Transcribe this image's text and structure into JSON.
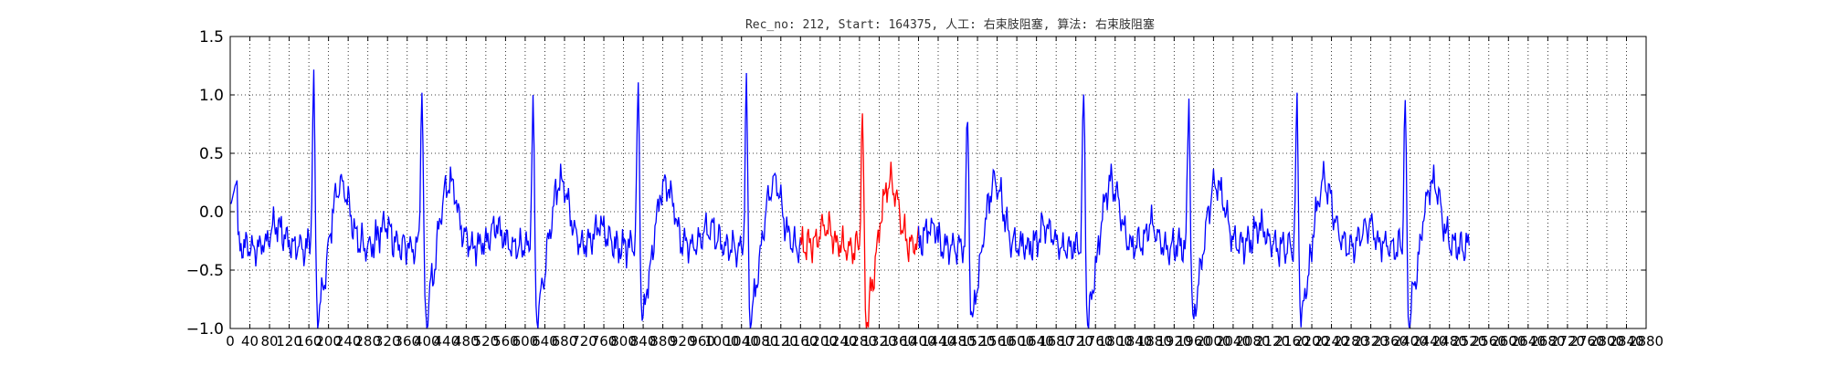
{
  "chart_data": {
    "type": "line",
    "title": "Rec_no: 212, Start: 164375, 人工: 右束肢阻塞, 算法: 右束肢阻塞",
    "xlabel": "",
    "ylabel": "",
    "xlim": [
      0,
      1440
    ],
    "ylim": [
      -1.0,
      1.5
    ],
    "grid": true,
    "grid_style": "dotted",
    "x_tick_values": [
      0,
      20,
      40,
      60,
      80,
      100,
      120,
      140,
      160,
      180,
      200,
      220,
      240,
      260,
      280,
      300,
      320,
      340,
      360,
      380,
      400,
      420,
      440,
      460,
      480,
      500,
      520,
      540,
      560,
      580,
      600,
      620,
      640,
      660,
      680,
      700,
      720,
      740,
      760,
      780,
      800,
      820,
      840,
      860,
      880,
      900,
      920,
      940,
      960,
      980,
      1000,
      1020,
      1040,
      1060,
      1080,
      1100,
      1120,
      1140,
      1160,
      1180,
      1200,
      1220,
      1240,
      1260,
      1280,
      1300,
      1320,
      1340,
      1360,
      1380,
      1400,
      1420,
      1440
    ],
    "x_tick_labels": [
      "0",
      "40",
      "80",
      "120",
      "160",
      "200",
      "240",
      "280",
      "320",
      "360",
      "400",
      "440",
      "480",
      "520",
      "560",
      "600",
      "640",
      "680",
      "720",
      "760",
      "800",
      "840",
      "880",
      "920",
      "960",
      "1000",
      "1040",
      "1080",
      "1120",
      "1160",
      "1200",
      "1240",
      "1280",
      "1320",
      "1360",
      "1400",
      "1440",
      "1480",
      "1520",
      "1560",
      "1600",
      "1640",
      "1680",
      "1720",
      "1760",
      "1800",
      "1840",
      "1880",
      "1920",
      "1960",
      "2000",
      "2040",
      "2080",
      "2120",
      "2160",
      "2200",
      "2240",
      "2280",
      "2320",
      "2360",
      "2400",
      "2440",
      "2480",
      "2520",
      "2560",
      "2600",
      "2640",
      "2680",
      "2720",
      "2760",
      "2800",
      "2840",
      "2880"
    ],
    "y_ticks": [
      -1.0,
      -0.5,
      0.0,
      0.5,
      1.0,
      1.5
    ],
    "y_tick_labels": [
      "−1.0",
      "−0.5",
      "0.0",
      "0.5",
      "1.0",
      "1.5"
    ],
    "x_end": 1260,
    "beat_peaks": [
      85,
      195,
      308,
      415,
      525,
      643,
      750,
      868,
      975,
      1085,
      1195
    ],
    "beat_amps": [
      1.23,
      1.19,
      1.05,
      1.22,
      1.15,
      0.92,
      0.94,
      1.13,
      1.15,
      1.05,
      1.0
    ],
    "highlight_range": [
      580,
      700
    ],
    "series": [
      {
        "color": "#0000ff"
      },
      {
        "color": "#ff0000"
      }
    ]
  }
}
